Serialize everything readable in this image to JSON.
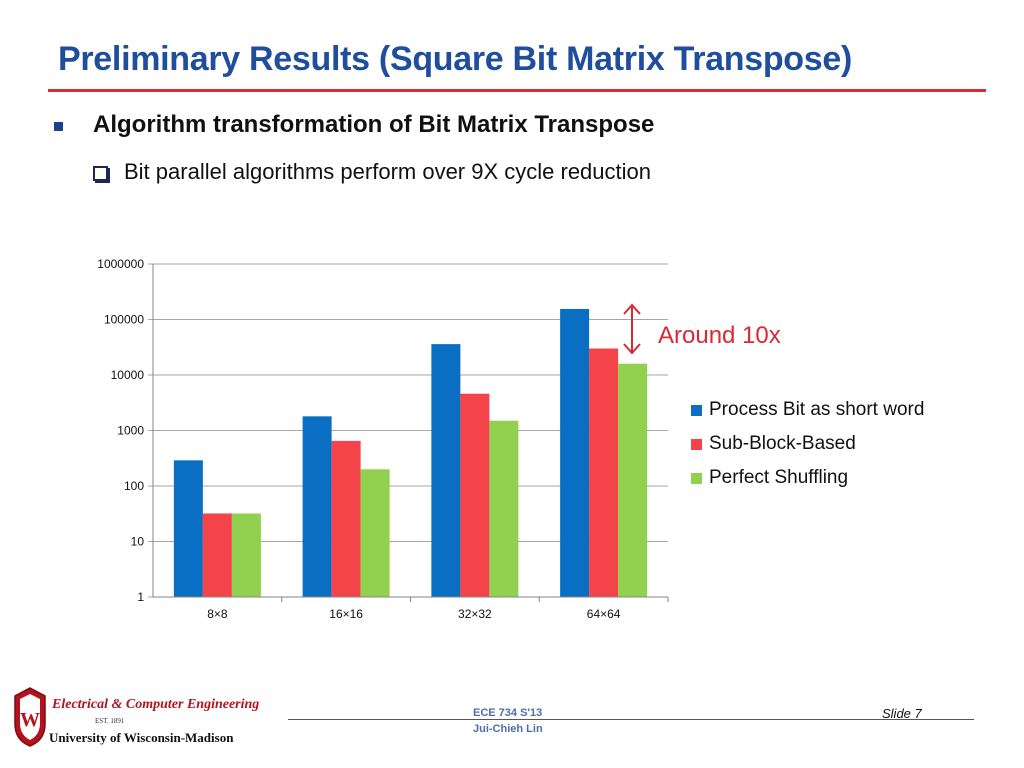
{
  "slide": {
    "title": "Preliminary Results (Square Bit Matrix Transpose)",
    "bullet_main": "Algorithm transformation of Bit Matrix Transpose",
    "bullet_sub": "Bit parallel algorithms perform over 9X cycle reduction",
    "annotation": "Around 10x"
  },
  "colors": {
    "title": "#1f4e9c",
    "accent_red": "#d82a35",
    "series_blue": "#0a6fc2",
    "series_red": "#f54449",
    "series_green": "#92d050"
  },
  "chart_data": {
    "type": "bar",
    "scale": "log10",
    "categories": [
      "8×8",
      "16×16",
      "32×32",
      "64×64"
    ],
    "series": [
      {
        "name": "Process Bit as short word",
        "color": "#0a6fc2",
        "values": [
          290,
          1800,
          36000,
          155000
        ]
      },
      {
        "name": "Sub-Block-Based",
        "color": "#f54449",
        "values": [
          32,
          650,
          4600,
          30000
        ]
      },
      {
        "name": "Perfect Shuffling",
        "color": "#92d050",
        "values": [
          32,
          200,
          1500,
          16000
        ]
      }
    ],
    "y_ticks": [
      "1",
      "10",
      "100",
      "1000",
      "10000",
      "100000",
      "1000000"
    ],
    "ylim": [
      1,
      1000000
    ],
    "grid": true,
    "legend_position": "right"
  },
  "footer": {
    "department": "Electrical & Computer Engineering",
    "established": "EST. 1891",
    "university": "University of Wisconsin-Madison",
    "course": "ECE 734 S'13",
    "author": "Jui-Chieh Lin",
    "slide_label": "Slide 7"
  }
}
